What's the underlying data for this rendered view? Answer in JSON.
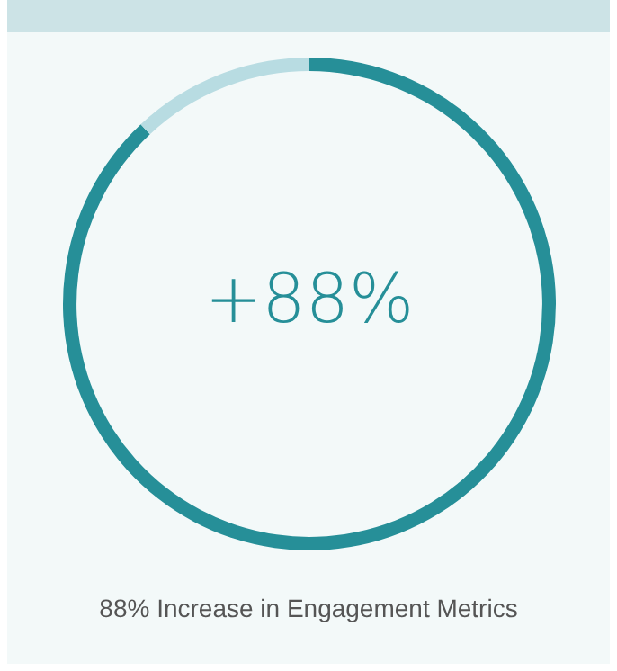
{
  "chart_data": {
    "type": "donut",
    "title": "88% Increase in Engagement Metrics",
    "categories": [
      null,
      null
    ],
    "values": [
      88,
      12
    ],
    "colors": [
      "#268f98",
      "#b8dce2"
    ],
    "annotations": [
      "+88%"
    ],
    "legend": false
  }
}
